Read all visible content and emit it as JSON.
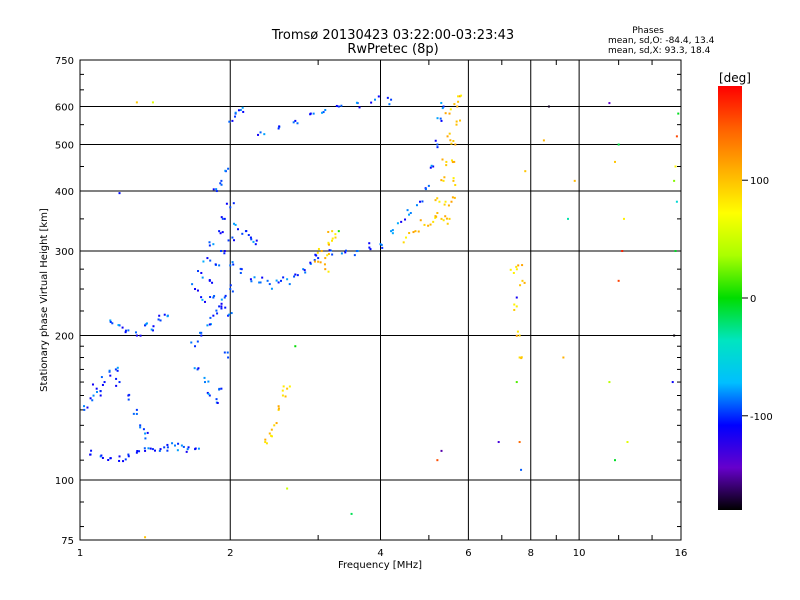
{
  "chart_data": {
    "type": "scatter",
    "title": "Tromsø 20130423 03:22:00-03:23:43",
    "subtitle": "RwPretec (8p)",
    "xlabel": "Frequency [MHz]",
    "ylabel": "Stationary phase Virtual Height [km]",
    "xscale": "log",
    "yscale": "log",
    "xlim": [
      1,
      16
    ],
    "ylim": [
      75,
      750
    ],
    "x_ticks": [
      1,
      2,
      4,
      6,
      8,
      10,
      16
    ],
    "y_ticks": [
      75,
      100,
      200,
      300,
      400,
      500,
      600,
      750
    ],
    "grid": true,
    "stats": {
      "title": "Phases",
      "line_o": "mean, sd,O: -84.4, 13.4",
      "line_x": "mean, sd,X:  93.3, 18.4"
    },
    "colorbar": {
      "label": "[deg]",
      "range": [
        -180,
        180
      ],
      "ticks": [
        100,
        0,
        -100
      ],
      "colors": [
        "#000000",
        "#6600cc",
        "#0000ff",
        "#00bfff",
        "#00e5c0",
        "#00dd00",
        "#aaff00",
        "#ffff00",
        "#ffb000",
        "#ff6000",
        "#ff0000"
      ]
    },
    "series": [
      {
        "desc_phase": -95,
        "points": [
          [
            1.05,
            113
          ],
          [
            1.1,
            112
          ],
          [
            1.15,
            111
          ],
          [
            1.2,
            112
          ],
          [
            1.25,
            113
          ],
          [
            1.3,
            114
          ],
          [
            1.35,
            115
          ],
          [
            1.4,
            116
          ],
          [
            1.45,
            116
          ],
          [
            1.5,
            117
          ],
          [
            1.55,
            118
          ],
          [
            1.6,
            118
          ],
          [
            1.65,
            117
          ],
          [
            1.7,
            116
          ],
          [
            1.02,
            140
          ],
          [
            1.05,
            148
          ],
          [
            1.08,
            155
          ],
          [
            1.1,
            150
          ],
          [
            1.12,
            160
          ],
          [
            1.15,
            165
          ],
          [
            1.18,
            170
          ],
          [
            1.2,
            160
          ],
          [
            1.25,
            150
          ],
          [
            1.3,
            140
          ],
          [
            1.32,
            130
          ],
          [
            1.35,
            125
          ],
          [
            1.15,
            215
          ],
          [
            1.2,
            210
          ],
          [
            1.25,
            205
          ],
          [
            1.3,
            200
          ],
          [
            1.35,
            210
          ],
          [
            1.4,
            205
          ],
          [
            1.45,
            215
          ],
          [
            1.5,
            220
          ],
          [
            1.7,
            190
          ],
          [
            1.75,
            200
          ],
          [
            1.8,
            210
          ],
          [
            1.85,
            220
          ],
          [
            1.9,
            230
          ],
          [
            1.95,
            240
          ],
          [
            2.0,
            250
          ],
          [
            1.72,
            170
          ],
          [
            1.78,
            160
          ],
          [
            1.82,
            150
          ],
          [
            1.88,
            145
          ],
          [
            1.92,
            155
          ],
          [
            1.98,
            180
          ],
          [
            1.75,
            270
          ],
          [
            1.8,
            290
          ],
          [
            1.85,
            310
          ],
          [
            1.9,
            330
          ],
          [
            1.95,
            350
          ],
          [
            2.0,
            370
          ],
          [
            1.88,
            400
          ],
          [
            1.92,
            420
          ],
          [
            1.96,
            440
          ],
          [
            1.82,
            260
          ],
          [
            1.9,
            280
          ],
          [
            1.95,
            300
          ],
          [
            2.02,
            320
          ],
          [
            2.05,
            340
          ],
          [
            2.0,
            280
          ],
          [
            1.85,
            240
          ],
          [
            1.92,
            230
          ],
          [
            1.98,
            220
          ],
          [
            1.7,
            250
          ],
          [
            1.78,
            235
          ],
          [
            2.1,
            270
          ],
          [
            2.2,
            262
          ],
          [
            2.3,
            258
          ],
          [
            2.4,
            256
          ],
          [
            2.5,
            258
          ],
          [
            2.6,
            262
          ],
          [
            2.7,
            268
          ],
          [
            2.8,
            275
          ],
          [
            2.9,
            282
          ],
          [
            3.0,
            290
          ],
          [
            3.2,
            295
          ],
          [
            3.4,
            298
          ],
          [
            3.6,
            300
          ],
          [
            3.8,
            305
          ],
          [
            4.0,
            310
          ],
          [
            4.2,
            330
          ],
          [
            4.4,
            345
          ],
          [
            4.6,
            360
          ],
          [
            4.8,
            380
          ],
          [
            5.0,
            410
          ],
          [
            5.1,
            450
          ],
          [
            5.2,
            500
          ],
          [
            5.3,
            560
          ],
          [
            5.35,
            600
          ],
          [
            2.02,
            560
          ],
          [
            2.05,
            580
          ],
          [
            2.1,
            590
          ],
          [
            2.3,
            530
          ],
          [
            2.5,
            540
          ],
          [
            2.7,
            560
          ],
          [
            2.9,
            580
          ],
          [
            3.1,
            590
          ],
          [
            3.3,
            600
          ],
          [
            3.6,
            610
          ],
          [
            3.9,
            620
          ],
          [
            4.2,
            620
          ],
          [
            2.15,
            330
          ],
          [
            2.2,
            320
          ],
          [
            2.25,
            310
          ]
        ]
      },
      {
        "desc_phase": 95,
        "points": [
          [
            5.5,
            350
          ],
          [
            5.55,
            380
          ],
          [
            5.6,
            420
          ],
          [
            5.62,
            460
          ],
          [
            5.65,
            500
          ],
          [
            5.68,
            550
          ],
          [
            5.7,
            600
          ],
          [
            5.72,
            630
          ],
          [
            5.4,
            380
          ],
          [
            5.35,
            420
          ],
          [
            5.42,
            460
          ],
          [
            5.45,
            520
          ],
          [
            5.5,
            580
          ],
          [
            5.3,
            350
          ],
          [
            5.25,
            380
          ],
          [
            4.5,
            320
          ],
          [
            4.7,
            330
          ],
          [
            4.9,
            340
          ],
          [
            5.1,
            345
          ],
          [
            5.2,
            360
          ],
          [
            3.1,
            290
          ],
          [
            3.15,
            310
          ],
          [
            3.2,
            330
          ],
          [
            3.25,
            320
          ],
          [
            3.05,
            300
          ],
          [
            3.0,
            285
          ],
          [
            3.1,
            275
          ],
          [
            2.35,
            120
          ],
          [
            2.4,
            125
          ],
          [
            2.45,
            130
          ],
          [
            2.5,
            140
          ],
          [
            2.55,
            150
          ],
          [
            2.6,
            155
          ],
          [
            7.6,
            200
          ],
          [
            7.5,
            230
          ],
          [
            7.7,
            260
          ],
          [
            7.55,
            280
          ],
          [
            7.6,
            180
          ],
          [
            7.4,
            270
          ]
        ]
      },
      {
        "desc_phase": 0,
        "points": [
          [
            1.2,
            396
          ],
          [
            1.3,
            612
          ],
          [
            1.4,
            612
          ],
          [
            2.7,
            190
          ],
          [
            3.3,
            330
          ],
          [
            6.9,
            120
          ],
          [
            7.5,
            240
          ],
          [
            9.8,
            420
          ],
          [
            12.0,
            260
          ],
          [
            12.5,
            120
          ],
          [
            15.5,
            200
          ],
          [
            15.6,
            300
          ],
          [
            15.7,
            380
          ],
          [
            15.5,
            420
          ],
          [
            15.4,
            160
          ],
          [
            15.6,
            450
          ],
          [
            15.7,
            520
          ],
          [
            15.8,
            580
          ],
          [
            11.5,
            610
          ],
          [
            12.0,
            500
          ],
          [
            11.8,
            460
          ],
          [
            12.2,
            300
          ],
          [
            11.5,
            160
          ],
          [
            11.8,
            110
          ],
          [
            12.3,
            350
          ],
          [
            8.5,
            510
          ],
          [
            8.7,
            600
          ],
          [
            7.8,
            440
          ],
          [
            9.5,
            350
          ],
          [
            9.3,
            180
          ],
          [
            7.5,
            160
          ],
          [
            7.6,
            120
          ],
          [
            7.65,
            105
          ],
          [
            3.5,
            85
          ],
          [
            2.6,
            96
          ],
          [
            1.35,
            76
          ],
          [
            5.2,
            110
          ],
          [
            5.3,
            115
          ]
        ]
      }
    ]
  }
}
